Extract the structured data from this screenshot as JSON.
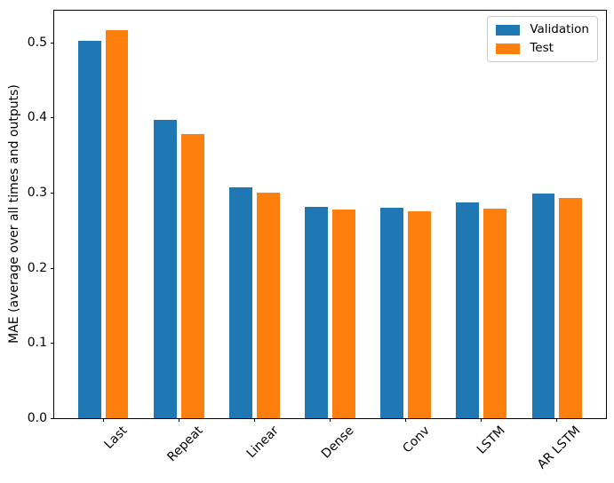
{
  "figure": {
    "background": "#ffffff"
  },
  "chart_data": {
    "type": "bar",
    "title": "",
    "xlabel": "",
    "ylabel": "MAE (average over all times and outputs)",
    "categories": [
      "Last",
      "Repeat",
      "Linear",
      "Dense",
      "Conv",
      "LSTM",
      "AR LSTM"
    ],
    "series": [
      {
        "name": "Validation",
        "color": "#1f77b4",
        "values": [
          0.502,
          0.397,
          0.307,
          0.281,
          0.28,
          0.287,
          0.299
        ]
      },
      {
        "name": "Test",
        "color": "#ff7f0e",
        "values": [
          0.516,
          0.378,
          0.3,
          0.277,
          0.275,
          0.279,
          0.293
        ]
      }
    ],
    "yticks": [
      0,
      0.1,
      0.2,
      0.3,
      0.4,
      0.5
    ],
    "ytick_labels": [
      "0.0",
      "0.1",
      "0.2",
      "0.3",
      "0.4",
      "0.5"
    ],
    "ylim": [
      0,
      0.542
    ],
    "xlim": [
      -0.652,
      6.652
    ],
    "bar_width": 0.3,
    "bar_offset": 0.18,
    "x_tick_rotation_deg": 45,
    "grid": false,
    "legend_position": "upper right"
  }
}
